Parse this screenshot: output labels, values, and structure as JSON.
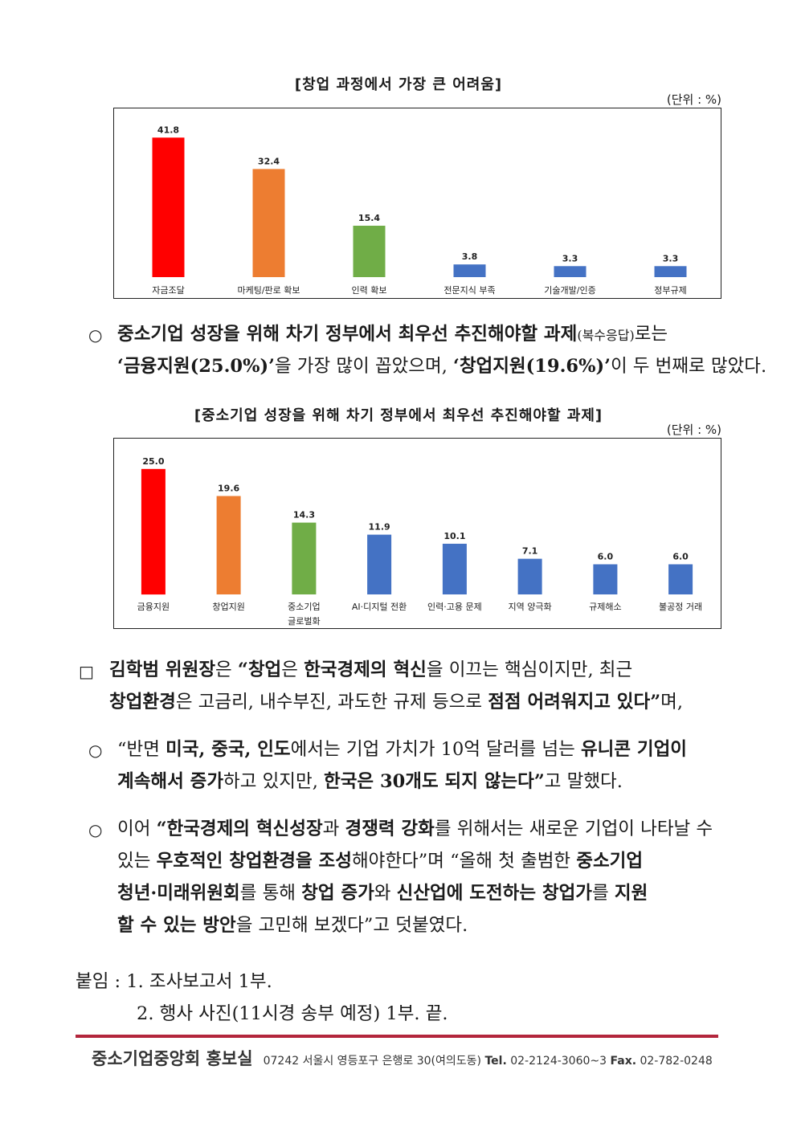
{
  "chart_data": [
    {
      "type": "bar",
      "title": "[창업 과정에서 가장 큰 어려움]",
      "unit": "(단위 : %)",
      "categories": [
        "자금조달",
        "마케팅/판로 확보",
        "인력 확보",
        "전문지식 부족",
        "기술개발/인증",
        "정부규제"
      ],
      "values": [
        41.8,
        32.4,
        15.4,
        3.8,
        3.3,
        3.3
      ],
      "colors": [
        "#ff0000",
        "#ed7d31",
        "#70ad47",
        "#4472c4",
        "#4472c4",
        "#4472c4"
      ],
      "ylim": [
        0,
        45
      ],
      "grid": false
    },
    {
      "type": "bar",
      "title": "[중소기업 성장을 위해 차기 정부에서 최우선 추진해야할 과제]",
      "unit": "(단위 : %)",
      "categories": [
        "금융지원",
        "창업지원",
        "중소기업 글로벌화",
        "AI·디지털 전환",
        "인력·고용 문제",
        "지역 양극화",
        "규제해소",
        "불공정 거래"
      ],
      "values": [
        25.0,
        19.6,
        14.3,
        11.9,
        10.1,
        7.1,
        6.0,
        6.0
      ],
      "colors": [
        "#ff0000",
        "#ed7d31",
        "#70ad47",
        "#4472c4",
        "#4472c4",
        "#4472c4",
        "#4472c4",
        "#4472c4"
      ],
      "ylim": [
        0,
        28
      ],
      "grid": false
    }
  ],
  "text": {
    "circle_bullet": "○",
    "square_bullet": "□",
    "p1": {
      "l1_a": "중소기업 성장을 위해 차기 정부에서 최우선 추진해야할 과제",
      "l1_b": "(복수응답)",
      "l1_c": "로는",
      "l2_a": "‘금융지원(25.0%)’",
      "l2_b": "을 가장 많이 꼽았으며, ",
      "l2_c": "‘창업지원(19.6%)’",
      "l2_d": "이 두 번째로 많았다."
    },
    "p2": {
      "l1_a": "김학범 위원장",
      "l1_b": "은 ",
      "l1_c": "“창업",
      "l1_d": "은 ",
      "l1_e": "한국경제의 혁신",
      "l1_f": "을 이끄는 핵심이지만, 최근",
      "l2_a": "창업환경",
      "l2_b": "은 고금리, 내수부진, 과도한 규제 등으로 ",
      "l2_c": "점점 어려워지고 있다”",
      "l2_d": "며,"
    },
    "p3": {
      "l1_a": "“반면 ",
      "l1_b": "미국, 중국, 인도",
      "l1_c": "에서는 기업 가치가 10억 달러를 넘는 ",
      "l1_d": "유니콘 기업이",
      "l2_a": "계속해서 증가",
      "l2_b": "하고 있지만, ",
      "l2_c": "한국은 30개도 되지 않는다”",
      "l2_d": "고 말했다."
    },
    "p4": {
      "l1_a": "이어 ",
      "l1_b": "“한국경제의 혁신성장",
      "l1_c": "과 ",
      "l1_d": "경쟁력 강화",
      "l1_e": "를 위해서는 새로운 기업이 나타날 수",
      "l2_a": "있는 ",
      "l2_b": "우호적인 창업환경을 조성",
      "l2_c": "해야한다”며 “올해 첫 출범한 ",
      "l2_d": "중소기업",
      "l3_a": "청년·미래위원회",
      "l3_b": "를 통해 ",
      "l3_c": "창업 증가",
      "l3_d": "와 ",
      "l3_e": "신산업에 도전하는 창업가",
      "l3_f": "를 ",
      "l3_g": "지원",
      "l4_a": "할 수 있는 방안",
      "l4_b": "을 고민해 보겠다”고 덧붙였다."
    },
    "attach": {
      "l1": "붙임 : 1. 조사보고서 1부.",
      "l2": "2. 행사 사진(11시경 송부 예정) 1부.   끝."
    }
  },
  "footer": {
    "org": "중소기업중앙회 홍보실",
    "address": "07242 서울시 영등포구 은행로 30(여의도동) ",
    "tel_label": "Tel.",
    "tel": " 02-2124-3060~3  ",
    "fax_label": "Fax.",
    "fax": " 02-782-0248",
    "accent_color": "#b3263c"
  }
}
